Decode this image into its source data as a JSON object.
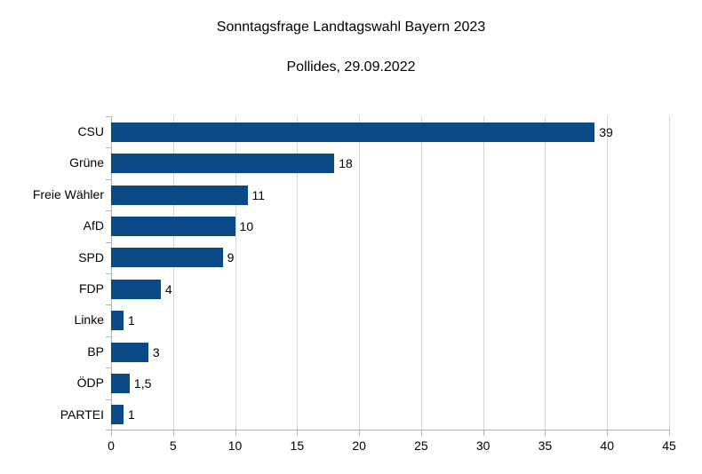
{
  "chart_data": {
    "type": "bar",
    "orientation": "horizontal",
    "title": "Sonntagsfrage Landtagswahl Bayern 2023",
    "subtitle": "Pollides, 29.09.2022",
    "categories": [
      "CSU",
      "Grüne",
      "Freie Wähler",
      "AfD",
      "SPD",
      "FDP",
      "Linke",
      "BP",
      "ÖDP",
      "PARTEI"
    ],
    "values": [
      39,
      18,
      11,
      10,
      9,
      4,
      1,
      3,
      1.5,
      1
    ],
    "value_labels": [
      "39",
      "18",
      "11",
      "10",
      "9",
      "4",
      "1",
      "3",
      "1,5",
      "1"
    ],
    "xlabel": "",
    "ylabel": "",
    "xlim": [
      0,
      45
    ],
    "x_ticks": [
      0,
      5,
      10,
      15,
      20,
      25,
      30,
      35,
      40,
      45
    ],
    "x_tick_labels": [
      "0",
      "5",
      "10",
      "15",
      "20",
      "25",
      "30",
      "35",
      "40",
      "45"
    ],
    "grid": "vertical",
    "legend": "none",
    "colors": {
      "bar": "#0b4a86",
      "grid": "#d6d6d6",
      "axis": "#b3b3b3",
      "text": "#000000",
      "background": "#ffffff"
    }
  }
}
